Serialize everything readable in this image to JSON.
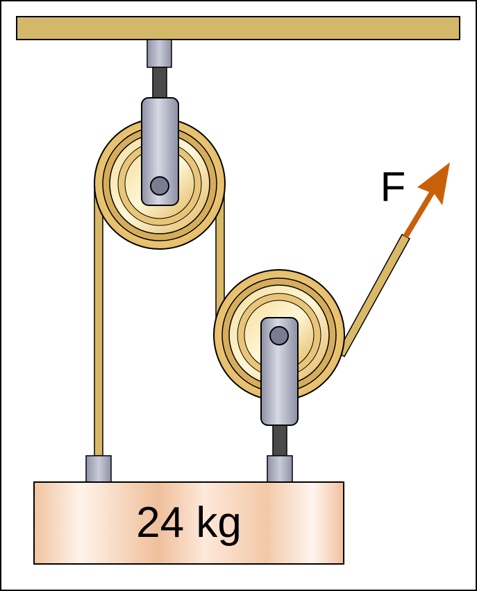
{
  "diagram": {
    "force_label": "F",
    "mass_label": "24 kg"
  },
  "colors": {
    "ceiling": "#d4b86a",
    "rope": "#d9b968",
    "pulley_outer": "#f3d99a",
    "pulley_inner": "#e8c170",
    "bracket": "#9da0b3",
    "axle_rod": "#4a4a4a",
    "arrow": "#c8600a",
    "block": "#f1c9a9",
    "frame": "#000000"
  }
}
